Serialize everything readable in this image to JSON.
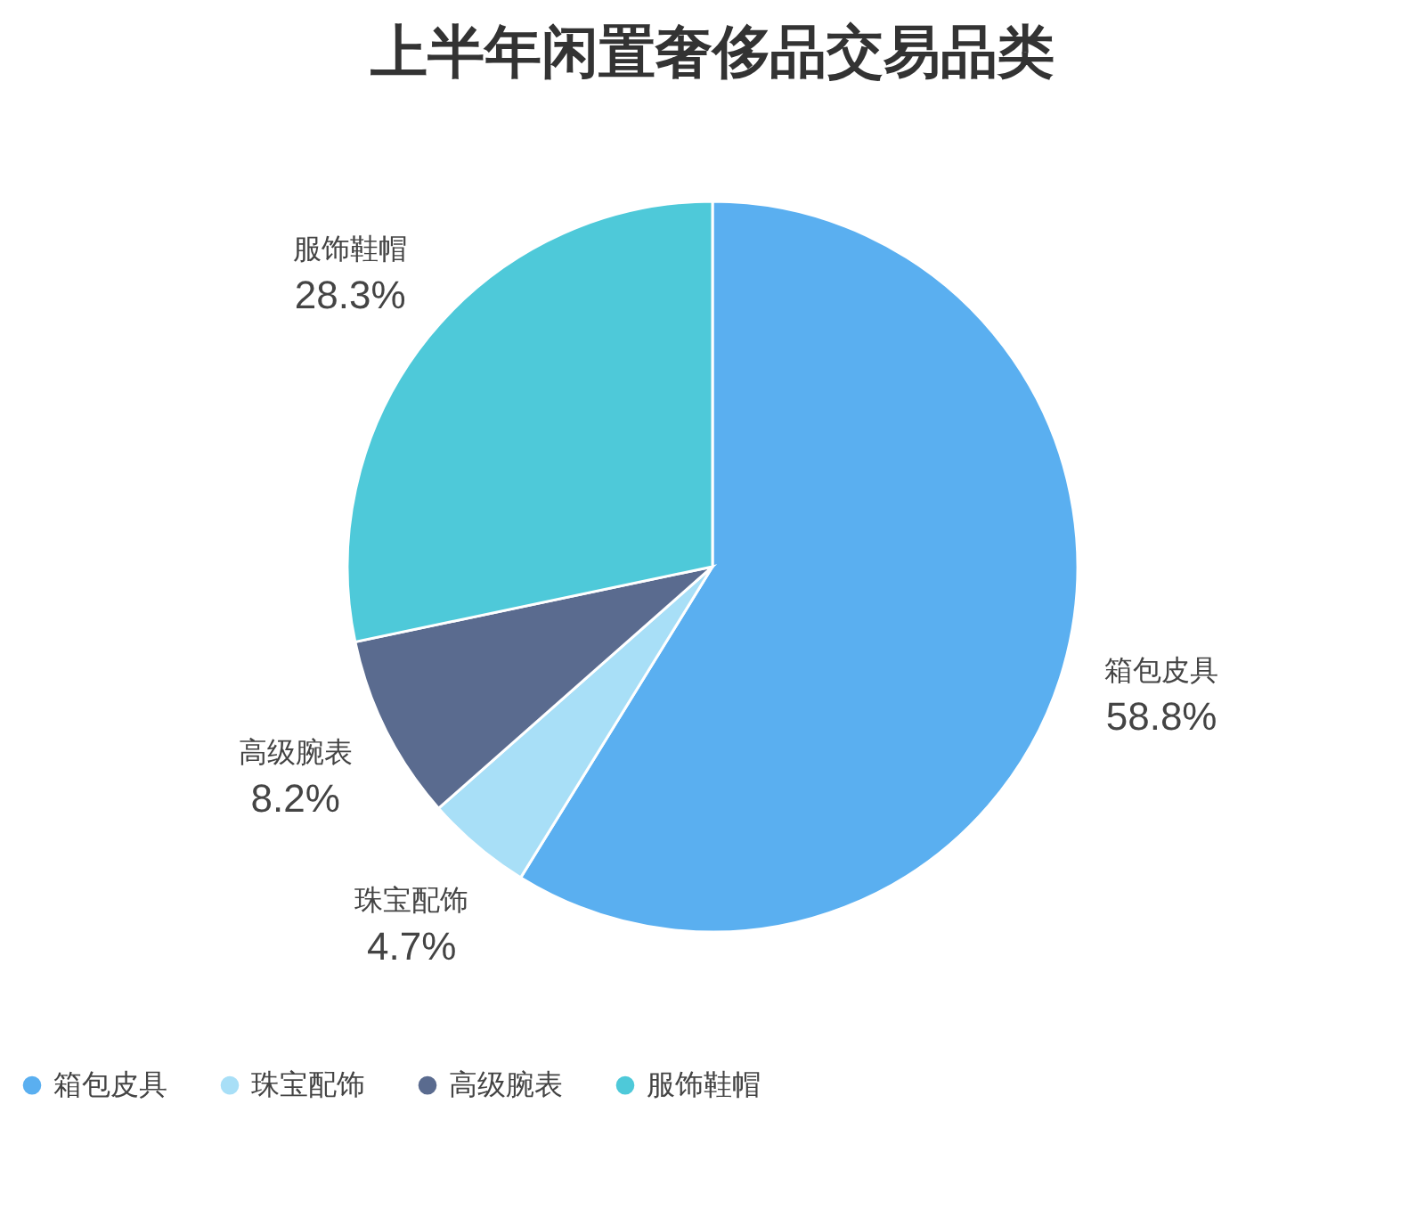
{
  "chart_data": {
    "type": "pie",
    "title": "上半年闲置奢侈品交易品类",
    "categories": [
      "箱包皮具",
      "珠宝配饰",
      "高级腕表",
      "服饰鞋帽"
    ],
    "values": [
      58.8,
      4.7,
      8.2,
      28.3
    ],
    "colors": [
      "#5aaff0",
      "#a8dff7",
      "#5a6b8f",
      "#4ec9d9"
    ],
    "value_labels": [
      "58.8%",
      "4.7%",
      "8.2%",
      "28.3%"
    ],
    "legend": "bottom"
  }
}
